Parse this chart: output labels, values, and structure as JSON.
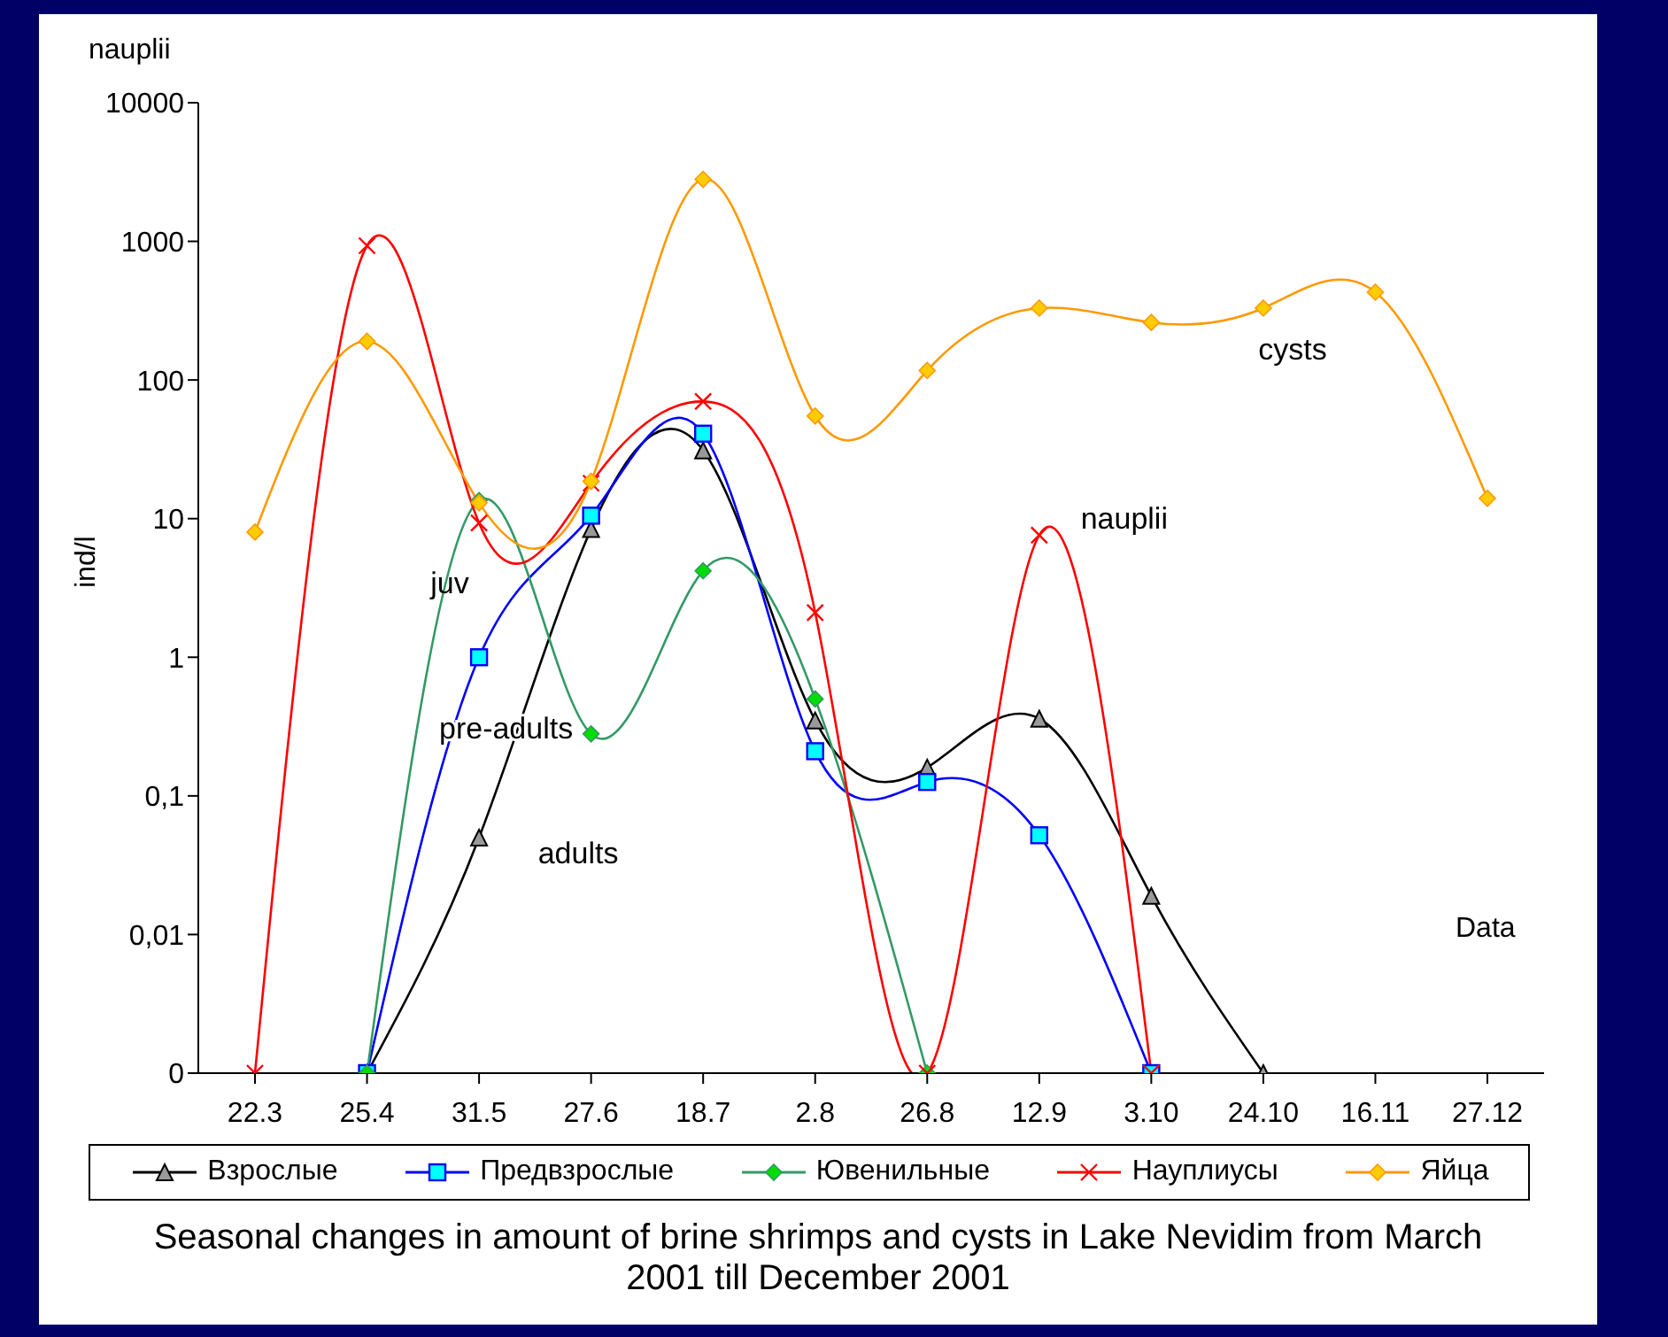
{
  "chart_data": {
    "type": "line",
    "title": "Seasonal changes in amount of brine shrimps and cysts in Lake Nevidim from March 2001 till December 2001",
    "xlabel": "Data",
    "ylabel": "ind/l",
    "log": "y",
    "legend": "bottom",
    "categories": [
      "22.3",
      "25.4",
      "31.5",
      "27.6",
      "18.7",
      "2.8",
      "26.8",
      "12.9",
      "3.10",
      "24.10",
      "16.11",
      "27.12"
    ],
    "ylim": [
      0.001,
      10000
    ],
    "yticks": [
      {
        "value": 0.001,
        "label": "0"
      },
      {
        "value": 0.01,
        "label": "0,01"
      },
      {
        "value": 0.1,
        "label": "0,1"
      },
      1,
      10,
      100,
      1000,
      10000
    ],
    "series": [
      {
        "name": "Взрослые",
        "color": "#000000",
        "marker": "triangle",
        "values": [
          null,
          0.001,
          0.05,
          8.4,
          31,
          0.35,
          0.16,
          0.36,
          0.019,
          0.001,
          null,
          null
        ]
      },
      {
        "name": "Предвзрослые",
        "color": "#0000ff",
        "marker": "square",
        "values": [
          null,
          0.001,
          1,
          10.5,
          41,
          0.21,
          0.126,
          0.052,
          0.001,
          null,
          null,
          null
        ]
      },
      {
        "name": "Ювенильные",
        "color": "#339966",
        "marker": "diamond",
        "values": [
          null,
          0.001,
          13.5,
          0.28,
          4.2,
          0.5,
          0.001,
          null,
          null,
          null,
          null,
          null
        ]
      },
      {
        "name": "Науплиусы",
        "color": "#ff0000",
        "marker": "cross",
        "values": [
          0.001,
          930,
          9.3,
          18,
          70,
          2.1,
          0.001,
          7.6,
          0.001,
          null,
          null,
          null
        ]
      },
      {
        "name": "Яйца",
        "color": "#ff9900",
        "marker": "diamond",
        "values": [
          8,
          190,
          13,
          18.6,
          2800,
          55,
          117,
          330,
          260,
          330,
          430,
          14
        ]
      }
    ],
    "annotations": [
      "nauplii",
      "juv",
      "cysts",
      {
        "text": "pre-adults",
        "x": "27.6",
        "y": 0.28
      },
      {
        "text": "adults",
        "x": "31.5",
        "y": 0.05
      },
      {
        "text": "nauplii",
        "x": "12.9",
        "y": 7.6
      }
    ]
  }
}
